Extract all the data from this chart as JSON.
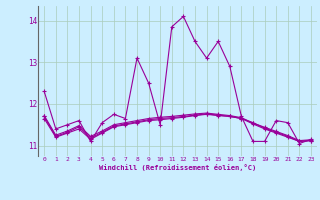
{
  "xlabel": "Windchill (Refroidissement éolien,°C)",
  "background_color": "#cceeff",
  "grid_color": "#aaccbb",
  "line_color": "#990099",
  "hours": [
    0,
    1,
    2,
    3,
    4,
    5,
    6,
    7,
    8,
    9,
    10,
    11,
    12,
    13,
    14,
    15,
    16,
    17,
    18,
    19,
    20,
    21,
    22,
    23
  ],
  "series": [
    [
      12.3,
      11.4,
      11.5,
      11.6,
      11.1,
      11.55,
      11.75,
      11.65,
      13.1,
      12.5,
      11.5,
      13.85,
      14.1,
      13.5,
      13.1,
      13.5,
      12.9,
      11.7,
      11.1,
      11.1,
      11.6,
      11.55,
      11.05,
      11.15
    ],
    [
      11.65,
      11.2,
      11.3,
      11.4,
      11.15,
      11.3,
      11.45,
      11.5,
      11.55,
      11.6,
      11.62,
      11.65,
      11.68,
      11.72,
      11.75,
      11.72,
      11.7,
      11.65,
      11.55,
      11.42,
      11.32,
      11.22,
      11.1,
      11.12
    ],
    [
      11.7,
      11.22,
      11.32,
      11.45,
      11.18,
      11.32,
      11.47,
      11.52,
      11.57,
      11.62,
      11.65,
      11.67,
      11.7,
      11.73,
      11.76,
      11.73,
      11.7,
      11.65,
      11.52,
      11.4,
      11.3,
      11.2,
      11.1,
      11.12
    ],
    [
      11.72,
      11.25,
      11.35,
      11.48,
      11.22,
      11.35,
      11.5,
      11.55,
      11.6,
      11.65,
      11.68,
      11.7,
      11.73,
      11.76,
      11.78,
      11.75,
      11.72,
      11.67,
      11.54,
      11.44,
      11.34,
      11.24,
      11.12,
      11.14
    ]
  ],
  "ylim": [
    10.75,
    14.35
  ],
  "yticks": [
    11,
    12,
    13,
    14
  ],
  "xticks": [
    0,
    1,
    2,
    3,
    4,
    5,
    6,
    7,
    8,
    9,
    10,
    11,
    12,
    13,
    14,
    15,
    16,
    17,
    18,
    19,
    20,
    21,
    22,
    23
  ]
}
